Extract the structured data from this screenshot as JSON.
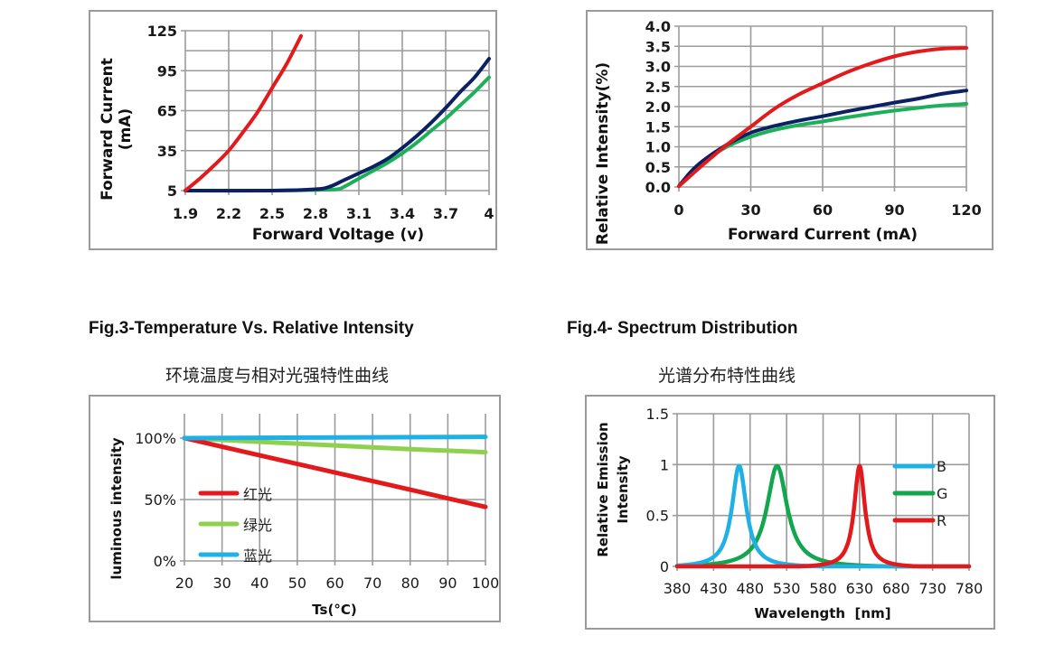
{
  "figures": {
    "fig3": {
      "heading": "Fig.3-Temperature Vs. Relative Intensity",
      "subtitle": "环境温度与相对光强特性曲线"
    },
    "fig4": {
      "heading": "Fig.4- Spectrum Distribution",
      "subtitle": "光谱分布特性曲线"
    }
  },
  "chart_data": [
    {
      "type": "line",
      "title": "",
      "xlabel": "Forward Voltage (v)",
      "ylabel": "Forward Current (mA)",
      "ylabel_lines": [
        "Forward Current",
        "(mA)"
      ],
      "xlim": [
        1.9,
        4.0
      ],
      "ylim": [
        5,
        125
      ],
      "x_ticks": [
        1.9,
        2.2,
        2.5,
        2.8,
        3.1,
        3.4,
        3.7,
        4.0
      ],
      "x_tick_labels": [
        "1.9",
        "2.2",
        "2.5",
        "2.8",
        "3.1",
        "3.4",
        "3.7",
        "4"
      ],
      "y_ticks": [
        5,
        35,
        65,
        95,
        125
      ],
      "y_tick_labels": [
        "5",
        "35",
        "65",
        "95",
        "125"
      ],
      "y_minor_grid": [
        20,
        50,
        80,
        110
      ],
      "grid": true,
      "series": [
        {
          "name": "Red",
          "color": "#e31a1c",
          "x": [
            1.9,
            2.0,
            2.1,
            2.2,
            2.3,
            2.4,
            2.5,
            2.6,
            2.7
          ],
          "y": [
            5,
            14,
            24,
            35,
            49,
            64,
            82,
            100,
            121
          ]
        },
        {
          "name": "Blue",
          "color": "#0c2163",
          "x": [
            1.9,
            2.5,
            2.8,
            2.9,
            3.0,
            3.1,
            3.2,
            3.3,
            3.4,
            3.5,
            3.6,
            3.7,
            3.8,
            3.9,
            4.0
          ],
          "y": [
            5,
            5,
            6,
            8,
            13,
            18,
            23,
            29,
            37,
            46,
            56,
            67,
            79,
            90,
            104
          ]
        },
        {
          "name": "Green",
          "color": "#1db05a",
          "x": [
            1.9,
            2.5,
            2.8,
            2.95,
            3.0,
            3.1,
            3.2,
            3.3,
            3.4,
            3.5,
            3.6,
            3.7,
            3.8,
            3.9,
            4.0
          ],
          "y": [
            5,
            5,
            5.5,
            6,
            8,
            14,
            20,
            26,
            33,
            41,
            50,
            59,
            69,
            79,
            90
          ]
        }
      ]
    },
    {
      "type": "line",
      "title": "",
      "xlabel": "Forward Current (mA)",
      "ylabel": "Relative Intensity(%)",
      "xlim": [
        0,
        120
      ],
      "ylim": [
        0,
        4.0
      ],
      "x_ticks": [
        0,
        30,
        60,
        90,
        120
      ],
      "x_tick_labels": [
        "0",
        "30",
        "60",
        "90",
        "120"
      ],
      "y_ticks": [
        0,
        0.5,
        1.0,
        1.5,
        2.0,
        2.5,
        3.0,
        3.5,
        4.0
      ],
      "y_tick_labels": [
        "0.0",
        "0.5",
        "1.0",
        "1.5",
        "2.0",
        "2.5",
        "3.0",
        "3.5",
        "4.0"
      ],
      "grid": true,
      "series": [
        {
          "name": "Red",
          "color": "#e31a1c",
          "x": [
            0,
            10,
            20,
            30,
            40,
            50,
            60,
            70,
            80,
            90,
            100,
            110,
            120
          ],
          "y": [
            0.02,
            0.55,
            1.05,
            1.5,
            1.95,
            2.3,
            2.58,
            2.85,
            3.07,
            3.25,
            3.37,
            3.44,
            3.46
          ]
        },
        {
          "name": "Blue",
          "color": "#0c2163",
          "x": [
            0,
            5,
            10,
            20,
            30,
            40,
            50,
            60,
            70,
            80,
            90,
            100,
            110,
            120
          ],
          "y": [
            0.02,
            0.38,
            0.65,
            1.05,
            1.35,
            1.52,
            1.65,
            1.76,
            1.88,
            1.99,
            2.1,
            2.2,
            2.32,
            2.4
          ]
        },
        {
          "name": "Green",
          "color": "#1db05a",
          "x": [
            0,
            5,
            10,
            20,
            30,
            40,
            50,
            60,
            70,
            80,
            90,
            100,
            110,
            120
          ],
          "y": [
            0.02,
            0.36,
            0.62,
            1.0,
            1.25,
            1.42,
            1.54,
            1.63,
            1.73,
            1.82,
            1.9,
            1.97,
            2.03,
            2.07
          ]
        }
      ]
    },
    {
      "type": "line",
      "title": "环境温度与相对光强特性曲线",
      "xlabel": "Ts(°C)",
      "ylabel": "luminous intensity",
      "xlim": [
        20,
        100
      ],
      "ylim": [
        0,
        120
      ],
      "x_ticks": [
        20,
        30,
        40,
        50,
        60,
        70,
        80,
        90,
        100
      ],
      "x_tick_labels": [
        "20",
        "30",
        "40",
        "50",
        "60",
        "70",
        "80",
        "90",
        "100"
      ],
      "y_ticks": [
        0,
        50,
        100
      ],
      "y_tick_labels": [
        "0%",
        "50%",
        "100%"
      ],
      "grid": true,
      "legend": "left",
      "series": [
        {
          "name": "红光",
          "color": "#e31a1c",
          "x": [
            20,
            30,
            40,
            50,
            60,
            70,
            80,
            90,
            100
          ],
          "y": [
            100,
            93,
            86,
            79,
            72,
            65,
            58,
            51,
            44
          ]
        },
        {
          "name": "绿光",
          "color": "#8fd14f",
          "x": [
            20,
            30,
            40,
            50,
            60,
            70,
            80,
            90,
            100
          ],
          "y": [
            100,
            98.5,
            97,
            95.5,
            94,
            92.5,
            91,
            89.8,
            88.5
          ]
        },
        {
          "name": "蓝光",
          "color": "#1fb0e6",
          "x": [
            20,
            100
          ],
          "y": [
            100,
            101
          ]
        }
      ]
    },
    {
      "type": "line",
      "title": "光谱分布特性曲线",
      "xlabel": "Wavelength  [nm]",
      "ylabel": "Relative Emission Intensity",
      "ylabel_lines": [
        "Relative Emission",
        "Intensity"
      ],
      "xlim": [
        380,
        780
      ],
      "ylim": [
        0,
        1.5
      ],
      "x_ticks": [
        380,
        430,
        480,
        530,
        580,
        630,
        680,
        730,
        780
      ],
      "x_tick_labels": [
        "380",
        "430",
        "480",
        "530",
        "580",
        "630",
        "680",
        "730",
        "780"
      ],
      "y_ticks": [
        0,
        0.5,
        1,
        1.5
      ],
      "y_tick_labels": [
        "0",
        "0.5",
        "1",
        "1.5"
      ],
      "grid": true,
      "legend": "right",
      "series": [
        {
          "name": "B",
          "color": "#1fb0e6",
          "peak_nm": 465,
          "peak": 1.0,
          "fwhm_nm": 24
        },
        {
          "name": "G",
          "color": "#12a64e",
          "peak_nm": 517,
          "peak": 1.0,
          "fwhm_nm": 34
        },
        {
          "name": "R",
          "color": "#e31a1c",
          "peak_nm": 630,
          "peak": 1.0,
          "fwhm_nm": 18
        }
      ]
    }
  ]
}
